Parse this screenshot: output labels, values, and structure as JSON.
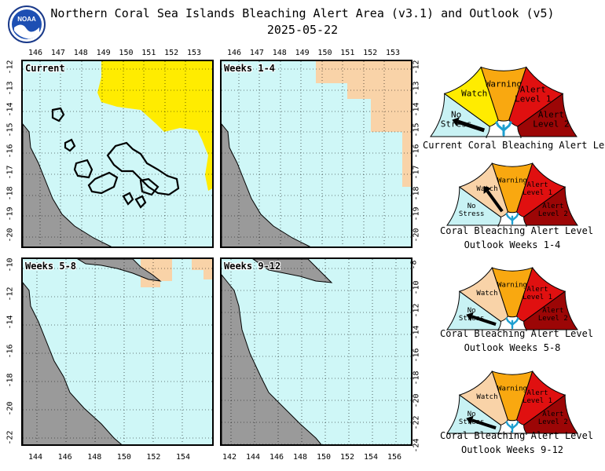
{
  "header": {
    "title": "Northern Coral Sea Islands Bleaching Alert Area (v3.1) and Outlook (v5)",
    "date": "2025-05-22",
    "logo_text": "NOAA"
  },
  "panels": [
    {
      "id": "current",
      "label": "Current",
      "top_ticks": [
        "146",
        "147",
        "148",
        "149",
        "150",
        "151",
        "152",
        "153"
      ],
      "left_ticks": [
        "-12",
        "-13",
        "-14",
        "-15",
        "-16",
        "-17",
        "-18",
        "-19",
        "-20"
      ]
    },
    {
      "id": "w1_4",
      "label": "Weeks 1-4",
      "top_ticks": [
        "146",
        "147",
        "148",
        "149",
        "150",
        "151",
        "152",
        "153"
      ],
      "right_ticks": [
        "-12",
        "-13",
        "-14",
        "-15",
        "-16",
        "-17",
        "-18",
        "-19",
        "-20"
      ]
    },
    {
      "id": "w5_8",
      "label": "Weeks 5-8",
      "bottom_ticks": [
        "144",
        "146",
        "148",
        "150",
        "152",
        "154"
      ],
      "left_ticks": [
        "-10",
        "-12",
        "-14",
        "-16",
        "-18",
        "-20",
        "-22"
      ]
    },
    {
      "id": "w9_12",
      "label": "Weeks 9-12",
      "bottom_ticks": [
        "142",
        "144",
        "146",
        "148",
        "150",
        "152",
        "154",
        "156"
      ],
      "right_ticks": [
        "-8",
        "-10",
        "-12",
        "-14",
        "-16",
        "-18",
        "-20",
        "-22",
        "-24"
      ]
    }
  ],
  "gauge_levels": [
    "No Stress",
    "Watch",
    "Warning",
    "Alert Level 1",
    "Alert Level 2"
  ],
  "gauges": [
    {
      "caption": [
        "Current Coral Bleaching Alert Level"
      ],
      "level": "No Stress"
    },
    {
      "caption": [
        "Coral Bleaching Alert Level",
        "Outlook Weeks 1-4"
      ],
      "level": "Watch"
    },
    {
      "caption": [
        "Coral Bleaching Alert Level",
        "Outlook Weeks 5-8"
      ],
      "level": "No Stress"
    },
    {
      "caption": [
        "Coral Bleaching Alert Level",
        "Outlook Weeks 9-12"
      ],
      "level": "No Stress"
    }
  ],
  "colors": {
    "ocean": "#cff7f7",
    "land": "#9a9a9a",
    "watch": "#ffec00",
    "watch_outlook": "#f9d3a8",
    "no_stress": "#c8f2f4",
    "warning": "#f9a810",
    "alert1": "#e01010",
    "alert2": "#9c0606"
  }
}
